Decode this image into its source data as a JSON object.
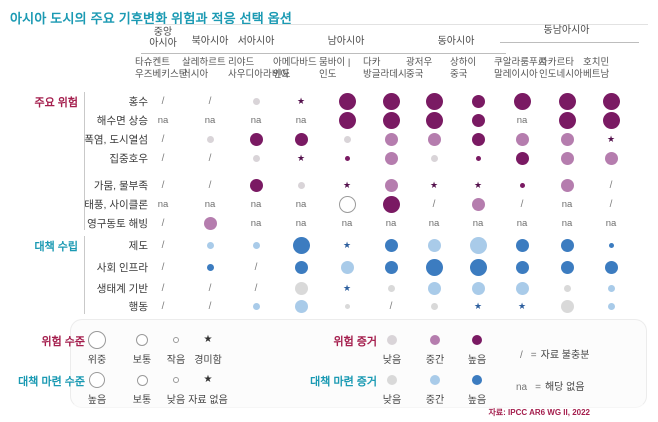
{
  "title": "아시아 도시의 주요 기후변화 위험과 적응 선택 옵션",
  "source": "자료: IPCC AR6 WG II, 2022",
  "sections": {
    "risk": {
      "label": "주요 위험"
    },
    "adapt": {
      "label": "대책 수립"
    }
  },
  "chart_data": {
    "type": "heatmap",
    "title": "아시아 도시의 주요 기후변화 위험과 적응 선택 옵션",
    "region_groups": [
      {
        "label": "중앙 아시아",
        "two_line": true,
        "col_start": 0,
        "col_end": 0
      },
      {
        "label": "북아시아",
        "col_start": 1,
        "col_end": 1
      },
      {
        "label": "서아시아",
        "col_start": 2,
        "col_end": 2
      },
      {
        "label": "남아시아",
        "col_start": 3,
        "col_end": 5
      },
      {
        "label": "동아시아",
        "col_start": 6,
        "col_end": 7
      },
      {
        "label": "동남아시아",
        "raised": true,
        "col_start": 8,
        "col_end": 10
      }
    ],
    "columns": [
      {
        "city": "타슈켄트",
        "country": "우즈베키스탄"
      },
      {
        "city": "살레하르트",
        "country": "러시아"
      },
      {
        "city": "리야드",
        "country": "사우디아라비아"
      },
      {
        "city": "아메다바드",
        "country": "인도"
      },
      {
        "city": "뭄바이 |",
        "country": "인도"
      },
      {
        "city": "다카",
        "country": "방글라데시"
      },
      {
        "city": "광저우",
        "country": "중국"
      },
      {
        "city": "상하이",
        "country": "중국"
      },
      {
        "city": "쿠알라룸푸르",
        "country": "말레이시아"
      },
      {
        "city": "자카르타",
        "country": "인도네시아"
      },
      {
        "city": "호치민",
        "country": "베트남"
      }
    ],
    "cell_encoding": {
      "L": "큰 원 = 위험 위중 / 대책 높음",
      "M": "중간 원 = 보통",
      "S": "작은 원 = 위험 작음 / 대책 낮음",
      "T": "아주 작은 원",
      "O": "외곽선 원 (위중, 증거 미표시)",
      "star": "★ = 위험 경미함 / 대책 자료 없음",
      "/": "자료 불충분",
      "na": "해당 없음",
      "high": "증거 높음",
      "mid": "증거 중간",
      "low": "증거 낮음"
    },
    "rows": [
      {
        "label": "홍수",
        "section": "risk",
        "cells": [
          "/",
          "/",
          "S:low",
          "star",
          "L:high",
          "L:high",
          "L:high",
          "M:high",
          "L:high",
          "L:high",
          "L:high"
        ]
      },
      {
        "label": "해수면 상승",
        "section": "risk",
        "cells": [
          "na",
          "na",
          "na",
          "na",
          "L:high",
          "L:high",
          "L:high",
          "M:high",
          "na",
          "L:high",
          "L:high"
        ]
      },
      {
        "label": "폭염, 도시열섬",
        "section": "risk",
        "cells": [
          "/",
          "S:low",
          "M:high",
          "M:high",
          "S:low",
          "M:mid",
          "M:mid",
          "M:high",
          "M:mid",
          "M:mid",
          "star"
        ]
      },
      {
        "label": "집중호우",
        "section": "risk",
        "cells": [
          "/",
          "/",
          "S:low",
          "star",
          "T:high",
          "M:mid",
          "S:low",
          "T:high",
          "M:high",
          "M:mid",
          "M:mid"
        ]
      },
      {
        "label": "가뭄, 물부족",
        "section": "risk",
        "cells": [
          "/",
          "/",
          "M:high",
          "S:low",
          "star",
          "M:mid",
          "star",
          "star",
          "T:high",
          "M:mid",
          "/"
        ]
      },
      {
        "label": "태풍, 사이클론",
        "section": "risk",
        "cells": [
          "na",
          "na",
          "na",
          "na",
          "O",
          "L:high",
          "/",
          "M:mid",
          "/",
          "na",
          "/"
        ]
      },
      {
        "label": "영구동토 해빙",
        "section": "risk",
        "cells": [
          "/",
          "M:mid",
          "na",
          "na",
          "na",
          "na",
          "na",
          "na",
          "na",
          "na",
          "na"
        ]
      },
      {
        "label": "제도",
        "section": "adapt",
        "cells": [
          "/",
          "S:mid",
          "S:mid",
          "L:high",
          "star",
          "M:high",
          "M:mid",
          "L:mid",
          "M:high",
          "M:high",
          "T:high"
        ]
      },
      {
        "label": "사회 인프라",
        "section": "adapt",
        "cells": [
          "/",
          "S:high",
          "/",
          "M:high",
          "M:mid",
          "M:high",
          "L:high",
          "L:high",
          "M:high",
          "M:high",
          "M:high"
        ]
      },
      {
        "label": "생태계 기반",
        "section": "adapt",
        "cells": [
          "/",
          "/",
          "/",
          "M:low",
          "star",
          "S:low",
          "M:mid",
          "M:mid",
          "M:mid",
          "S:low",
          "S:mid"
        ]
      },
      {
        "label": "행동",
        "section": "adapt",
        "cells": [
          "/",
          "/",
          "S:mid",
          "M:mid",
          "T:low",
          "/",
          "S:low",
          "star",
          "star",
          "M:low",
          "S:mid"
        ]
      }
    ]
  },
  "legend": {
    "risk_level": {
      "title": "위험 수준",
      "items": [
        {
          "label": "위중",
          "size": 18
        },
        {
          "label": "보통",
          "size": 12
        },
        {
          "label": "작음",
          "size": 6
        },
        {
          "label": "경미함",
          "star": true
        }
      ]
    },
    "adapt_level": {
      "title": "대책 마련 수준",
      "items": [
        {
          "label": "높음",
          "size": 16
        },
        {
          "label": "보통",
          "size": 11
        },
        {
          "label": "낮음",
          "size": 6
        },
        {
          "label": "자료 없음",
          "star": true
        }
      ]
    },
    "risk_evidence": {
      "title": "위험 증거",
      "items": [
        {
          "label": "낮음",
          "tone": "low"
        },
        {
          "label": "중간",
          "tone": "mid"
        },
        {
          "label": "높음",
          "tone": "high"
        }
      ]
    },
    "adapt_evidence": {
      "title": "대책 마련 증거",
      "items": [
        {
          "label": "낮음",
          "tone": "low"
        },
        {
          "label": "중간",
          "tone": "mid"
        },
        {
          "label": "높음",
          "tone": "high"
        }
      ]
    },
    "notes": {
      "slash_symbol": "/",
      "slash_eq": "=",
      "slash_text": "자료 불충분",
      "na_symbol": "na",
      "na_eq": "=",
      "na_text": "해당 없음"
    }
  },
  "colors": {
    "title_teal": "#1b9ab3",
    "maroon": "#a41e4d",
    "risk": {
      "high": "#7a1a63",
      "mid": "#b57dae",
      "low": "#d9d4d8",
      "star": "#54104c"
    },
    "adapt": {
      "high": "#3c7cc0",
      "mid": "#a9cbe9",
      "low": "#d9d9d9",
      "star": "#2d5f9e"
    }
  }
}
